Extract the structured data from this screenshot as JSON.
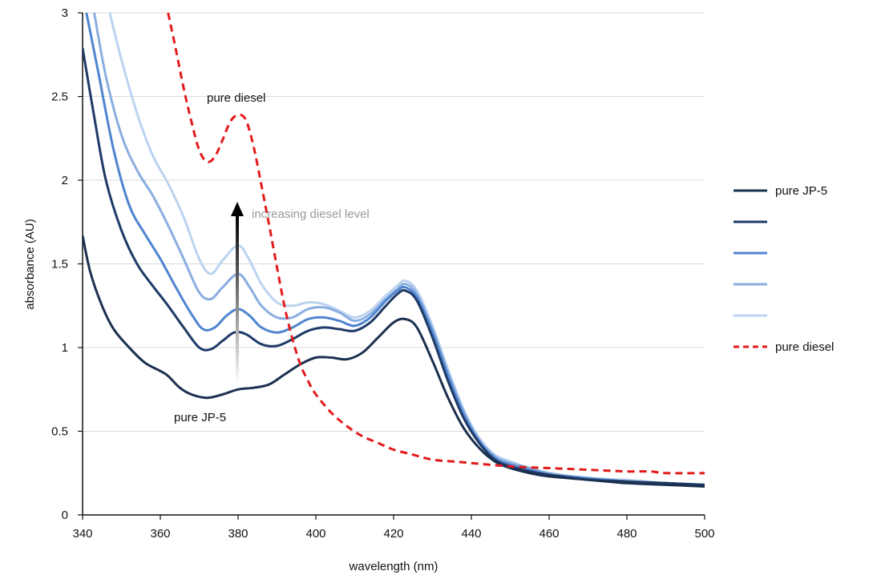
{
  "chart_data": {
    "type": "line",
    "xlabel": "wavelength (nm)",
    "ylabel": "absorbance (AU)",
    "xlim": [
      340,
      500
    ],
    "ylim": [
      0,
      3
    ],
    "xticks": [
      340,
      360,
      380,
      400,
      420,
      440,
      460,
      480,
      500
    ],
    "yticks": [
      0,
      0.5,
      1,
      1.5,
      2,
      2.5,
      3
    ],
    "ytick_labels": [
      "0",
      "0.5",
      "1",
      "1.5",
      "2",
      "2.5",
      "3"
    ],
    "grid": "horizontal",
    "legend_position": "right",
    "annotations": {
      "pure_diesel": "pure diesel",
      "pure_jp5": "pure JP-5",
      "arrow": "increasing diesel level"
    },
    "series": [
      {
        "name": "pure JP-5",
        "color": "#1b2f4f",
        "style": "solid",
        "points": [
          [
            340,
            1.67
          ],
          [
            342,
            1.45
          ],
          [
            345,
            1.25
          ],
          [
            348,
            1.11
          ],
          [
            352,
            1.0
          ],
          [
            356,
            0.91
          ],
          [
            360,
            0.86
          ],
          [
            362,
            0.83
          ],
          [
            365,
            0.76
          ],
          [
            368,
            0.72
          ],
          [
            372,
            0.7
          ],
          [
            376,
            0.72
          ],
          [
            380,
            0.75
          ],
          [
            384,
            0.76
          ],
          [
            388,
            0.78
          ],
          [
            392,
            0.84
          ],
          [
            396,
            0.9
          ],
          [
            400,
            0.94
          ],
          [
            404,
            0.94
          ],
          [
            408,
            0.93
          ],
          [
            412,
            0.97
          ],
          [
            416,
            1.06
          ],
          [
            420,
            1.15
          ],
          [
            423,
            1.17
          ],
          [
            426,
            1.12
          ],
          [
            430,
            0.92
          ],
          [
            434,
            0.7
          ],
          [
            438,
            0.52
          ],
          [
            442,
            0.4
          ],
          [
            446,
            0.32
          ],
          [
            450,
            0.28
          ],
          [
            455,
            0.25
          ],
          [
            460,
            0.23
          ],
          [
            470,
            0.21
          ],
          [
            480,
            0.19
          ],
          [
            490,
            0.18
          ],
          [
            500,
            0.17
          ]
        ]
      },
      {
        "color": "#1e3a66",
        "style": "solid",
        "points": [
          [
            340,
            2.79
          ],
          [
            343,
            2.38
          ],
          [
            346,
            2.0
          ],
          [
            350,
            1.7
          ],
          [
            354,
            1.5
          ],
          [
            358,
            1.37
          ],
          [
            362,
            1.25
          ],
          [
            366,
            1.12
          ],
          [
            370,
            1.0
          ],
          [
            373,
            0.99
          ],
          [
            376,
            1.04
          ],
          [
            379,
            1.09
          ],
          [
            382,
            1.08
          ],
          [
            386,
            1.02
          ],
          [
            390,
            1.01
          ],
          [
            394,
            1.05
          ],
          [
            398,
            1.1
          ],
          [
            402,
            1.12
          ],
          [
            406,
            1.11
          ],
          [
            410,
            1.1
          ],
          [
            414,
            1.15
          ],
          [
            418,
            1.25
          ],
          [
            421,
            1.32
          ],
          [
            423,
            1.34
          ],
          [
            426,
            1.28
          ],
          [
            430,
            1.06
          ],
          [
            434,
            0.8
          ],
          [
            438,
            0.58
          ],
          [
            442,
            0.43
          ],
          [
            446,
            0.33
          ],
          [
            450,
            0.29
          ],
          [
            455,
            0.26
          ],
          [
            460,
            0.24
          ],
          [
            470,
            0.21
          ],
          [
            480,
            0.2
          ],
          [
            490,
            0.19
          ],
          [
            500,
            0.18
          ]
        ]
      },
      {
        "color": "#4f84d0",
        "style": "solid",
        "points": [
          [
            341,
            3.0
          ],
          [
            344,
            2.65
          ],
          [
            348,
            2.18
          ],
          [
            352,
            1.85
          ],
          [
            356,
            1.68
          ],
          [
            360,
            1.53
          ],
          [
            364,
            1.36
          ],
          [
            368,
            1.2
          ],
          [
            371,
            1.11
          ],
          [
            374,
            1.12
          ],
          [
            377,
            1.19
          ],
          [
            380,
            1.23
          ],
          [
            383,
            1.19
          ],
          [
            386,
            1.12
          ],
          [
            390,
            1.09
          ],
          [
            394,
            1.12
          ],
          [
            398,
            1.17
          ],
          [
            402,
            1.18
          ],
          [
            406,
            1.16
          ],
          [
            410,
            1.13
          ],
          [
            414,
            1.18
          ],
          [
            418,
            1.28
          ],
          [
            421,
            1.34
          ],
          [
            423,
            1.36
          ],
          [
            426,
            1.3
          ],
          [
            430,
            1.09
          ],
          [
            434,
            0.83
          ],
          [
            438,
            0.6
          ],
          [
            442,
            0.44
          ],
          [
            446,
            0.34
          ],
          [
            450,
            0.3
          ],
          [
            455,
            0.27
          ],
          [
            460,
            0.24
          ],
          [
            470,
            0.22
          ],
          [
            480,
            0.2
          ],
          [
            490,
            0.19
          ],
          [
            500,
            0.18
          ]
        ]
      },
      {
        "color": "#89aee0",
        "style": "solid",
        "points": [
          [
            343,
            3.0
          ],
          [
            346,
            2.62
          ],
          [
            350,
            2.27
          ],
          [
            354,
            2.06
          ],
          [
            358,
            1.91
          ],
          [
            362,
            1.73
          ],
          [
            366,
            1.53
          ],
          [
            370,
            1.33
          ],
          [
            373,
            1.29
          ],
          [
            376,
            1.36
          ],
          [
            380,
            1.44
          ],
          [
            383,
            1.36
          ],
          [
            386,
            1.25
          ],
          [
            390,
            1.18
          ],
          [
            394,
            1.18
          ],
          [
            398,
            1.23
          ],
          [
            402,
            1.24
          ],
          [
            406,
            1.21
          ],
          [
            410,
            1.16
          ],
          [
            414,
            1.2
          ],
          [
            418,
            1.29
          ],
          [
            421,
            1.35
          ],
          [
            423,
            1.38
          ],
          [
            426,
            1.32
          ],
          [
            430,
            1.11
          ],
          [
            434,
            0.85
          ],
          [
            438,
            0.62
          ],
          [
            442,
            0.45
          ],
          [
            446,
            0.35
          ],
          [
            450,
            0.31
          ],
          [
            455,
            0.28
          ],
          [
            460,
            0.25
          ],
          [
            470,
            0.22
          ],
          [
            480,
            0.2
          ],
          [
            490,
            0.19
          ],
          [
            500,
            0.18
          ]
        ]
      },
      {
        "color": "#bcd3ef",
        "style": "solid",
        "points": [
          [
            347,
            3.0
          ],
          [
            350,
            2.72
          ],
          [
            354,
            2.4
          ],
          [
            358,
            2.15
          ],
          [
            362,
            1.98
          ],
          [
            366,
            1.78
          ],
          [
            370,
            1.53
          ],
          [
            373,
            1.44
          ],
          [
            376,
            1.52
          ],
          [
            380,
            1.61
          ],
          [
            383,
            1.52
          ],
          [
            386,
            1.38
          ],
          [
            390,
            1.27
          ],
          [
            394,
            1.25
          ],
          [
            398,
            1.27
          ],
          [
            402,
            1.26
          ],
          [
            406,
            1.22
          ],
          [
            410,
            1.18
          ],
          [
            414,
            1.22
          ],
          [
            418,
            1.31
          ],
          [
            421,
            1.37
          ],
          [
            423,
            1.4
          ],
          [
            426,
            1.34
          ],
          [
            430,
            1.13
          ],
          [
            434,
            0.87
          ],
          [
            438,
            0.63
          ],
          [
            442,
            0.46
          ],
          [
            446,
            0.36
          ],
          [
            450,
            0.32
          ],
          [
            455,
            0.28
          ],
          [
            460,
            0.25
          ],
          [
            470,
            0.22
          ],
          [
            480,
            0.21
          ],
          [
            490,
            0.19
          ],
          [
            500,
            0.18
          ]
        ]
      },
      {
        "name": "pure diesel",
        "color": "#e31a1c",
        "style": "dashed",
        "points": [
          [
            362,
            3.0
          ],
          [
            364,
            2.78
          ],
          [
            366,
            2.55
          ],
          [
            368,
            2.35
          ],
          [
            370,
            2.18
          ],
          [
            372,
            2.11
          ],
          [
            374,
            2.14
          ],
          [
            376,
            2.24
          ],
          [
            378,
            2.35
          ],
          [
            380,
            2.39
          ],
          [
            382,
            2.36
          ],
          [
            384,
            2.2
          ],
          [
            386,
            1.97
          ],
          [
            388,
            1.73
          ],
          [
            390,
            1.48
          ],
          [
            392,
            1.24
          ],
          [
            394,
            1.05
          ],
          [
            396,
            0.9
          ],
          [
            398,
            0.8
          ],
          [
            400,
            0.72
          ],
          [
            404,
            0.61
          ],
          [
            408,
            0.53
          ],
          [
            412,
            0.47
          ],
          [
            416,
            0.43
          ],
          [
            420,
            0.39
          ],
          [
            425,
            0.36
          ],
          [
            430,
            0.33
          ],
          [
            435,
            0.32
          ],
          [
            440,
            0.31
          ],
          [
            450,
            0.29
          ],
          [
            460,
            0.28
          ],
          [
            470,
            0.27
          ],
          [
            480,
            0.26
          ],
          [
            486,
            0.26
          ],
          [
            490,
            0.25
          ],
          [
            500,
            0.25
          ]
        ]
      }
    ]
  }
}
